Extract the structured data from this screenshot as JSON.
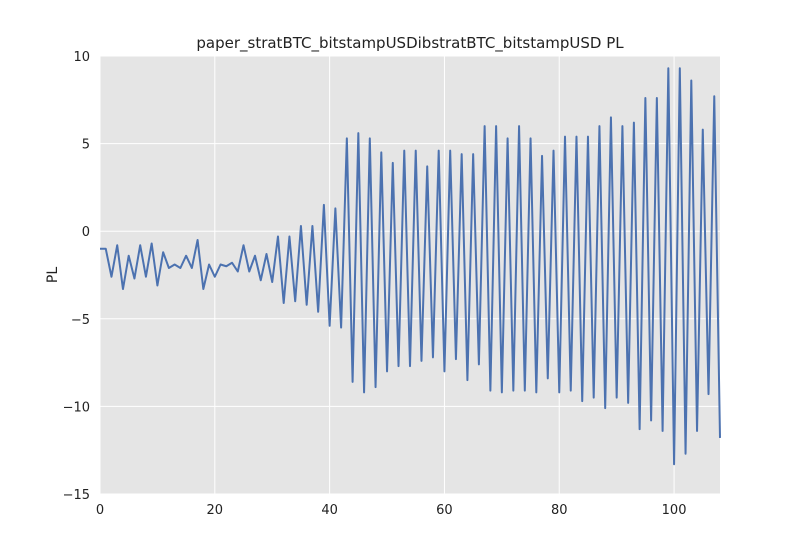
{
  "chart_data": {
    "type": "line",
    "title": "paper_stratBTC_bitstampUSDibstratBTC_bitstampUSD PL",
    "xlabel": "",
    "ylabel": "PL",
    "xlim": [
      0,
      108
    ],
    "ylim": [
      -15,
      10
    ],
    "xticks": [
      0,
      20,
      40,
      60,
      80,
      100
    ],
    "yticks": [
      -15,
      -10,
      -5,
      0,
      5,
      10
    ],
    "xtick_labels": [
      "0",
      "20",
      "40",
      "60",
      "80",
      "100"
    ],
    "ytick_labels": [
      "−15",
      "−10",
      "−5",
      "0",
      "5",
      "10"
    ],
    "grid": true,
    "colors": {
      "line": "#4c72b0",
      "background": "#e5e5e5",
      "grid": "#ffffff"
    },
    "series": [
      {
        "x": [
          0,
          1,
          2,
          3,
          4,
          5,
          6,
          7,
          8,
          9,
          10,
          11,
          12,
          13,
          14,
          15,
          16,
          17,
          18,
          19,
          20,
          21,
          22,
          23,
          24,
          25,
          26,
          27,
          28,
          29,
          30,
          31,
          32,
          33,
          34,
          35,
          36,
          37,
          38,
          39,
          40,
          41,
          42,
          43,
          44,
          45,
          46,
          47,
          48,
          49,
          50,
          51,
          52,
          53,
          54,
          55,
          56,
          57,
          58,
          59,
          60,
          61,
          62,
          63,
          64,
          65,
          66,
          67,
          68,
          69,
          70,
          71,
          72,
          73,
          74,
          75,
          76,
          77,
          78,
          79,
          80,
          81,
          82,
          83,
          84,
          85,
          86,
          87,
          88,
          89,
          90,
          91,
          92,
          93,
          94,
          95,
          96,
          97,
          98,
          99,
          100,
          101,
          102,
          103,
          104,
          105,
          106,
          107,
          108
        ],
        "values": [
          -1.0,
          -1.0,
          -2.6,
          -0.8,
          -3.3,
          -1.4,
          -2.7,
          -0.8,
          -2.6,
          -0.7,
          -3.1,
          -1.2,
          -2.1,
          -1.9,
          -2.1,
          -1.4,
          -2.1,
          -0.5,
          -3.3,
          -1.9,
          -2.6,
          -1.9,
          -2.0,
          -1.8,
          -2.3,
          -0.8,
          -2.3,
          -1.4,
          -2.8,
          -1.3,
          -2.9,
          -0.3,
          -4.1,
          -0.3,
          -4.0,
          0.3,
          -4.2,
          0.3,
          -4.6,
          1.5,
          -5.4,
          1.3,
          -5.5,
          5.3,
          -8.6,
          5.6,
          -9.2,
          5.3,
          -8.9,
          4.5,
          -8.0,
          3.9,
          -7.7,
          4.6,
          -7.7,
          4.6,
          -7.4,
          3.7,
          -7.2,
          4.6,
          -8.0,
          4.6,
          -7.3,
          4.4,
          -8.5,
          4.4,
          -7.6,
          6.0,
          -9.1,
          6.0,
          -9.2,
          5.3,
          -9.1,
          6.0,
          -9.1,
          5.3,
          -9.2,
          4.3,
          -8.4,
          4.6,
          -9.2,
          5.4,
          -9.1,
          5.4,
          -9.7,
          5.4,
          -9.5,
          6.0,
          -10.1,
          6.5,
          -9.5,
          6.0,
          -9.8,
          6.2,
          -11.3,
          7.6,
          -10.8,
          7.6,
          -11.4,
          9.3,
          -13.3,
          9.3,
          -12.7,
          8.6,
          -11.4,
          5.8,
          -9.3,
          7.7,
          -11.8
        ]
      }
    ]
  }
}
